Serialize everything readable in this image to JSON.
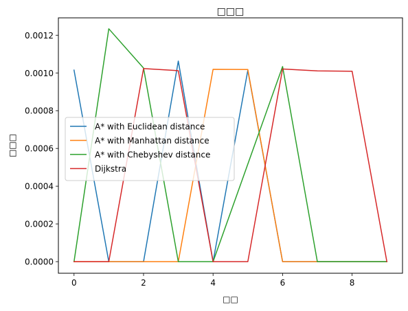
{
  "chart_data": {
    "type": "line",
    "title": "□□□",
    "xlabel": "□□",
    "ylabel": "□□□",
    "x": [
      0,
      1,
      2,
      3,
      4,
      5,
      6,
      7,
      8,
      9
    ],
    "xlim": [
      -0.45,
      9.45
    ],
    "ylim": [
      -6.15e-05,
      0.001292
    ],
    "xticks": [
      0,
      2,
      4,
      6,
      8
    ],
    "xtick_labels": [
      "0",
      "2",
      "4",
      "6",
      "8"
    ],
    "yticks": [
      0,
      0.0002,
      0.0004,
      0.0006,
      0.0008,
      0.001,
      0.0012
    ],
    "ytick_labels": [
      "0.0000",
      "0.0002",
      "0.0004",
      "0.0006",
      "0.0008",
      "0.0010",
      "0.0012"
    ],
    "grid": false,
    "legend_position": "center-left",
    "series": [
      {
        "name": "A* with Euclidean distance",
        "color": "#1f77b4",
        "values": [
          0.001015,
          0,
          0,
          0.001063,
          0,
          0.001014,
          0,
          0,
          0,
          0
        ]
      },
      {
        "name": "A* with Manhattan distance",
        "color": "#ff7f0e",
        "values": [
          0,
          0,
          0,
          0,
          0.001019,
          0.001018,
          0,
          0,
          0,
          0
        ]
      },
      {
        "name": "A* with Chebyshev distance",
        "color": "#2ca02c",
        "values": [
          0,
          0.001234,
          0.001026,
          0,
          0,
          null,
          0.001034,
          0,
          0,
          0
        ]
      },
      {
        "name": "Dijkstra",
        "color": "#d62728",
        "values": [
          0,
          0,
          0.001023,
          0.001012,
          0,
          0,
          0.001021,
          0.001011,
          0.001009,
          0
        ]
      }
    ]
  }
}
